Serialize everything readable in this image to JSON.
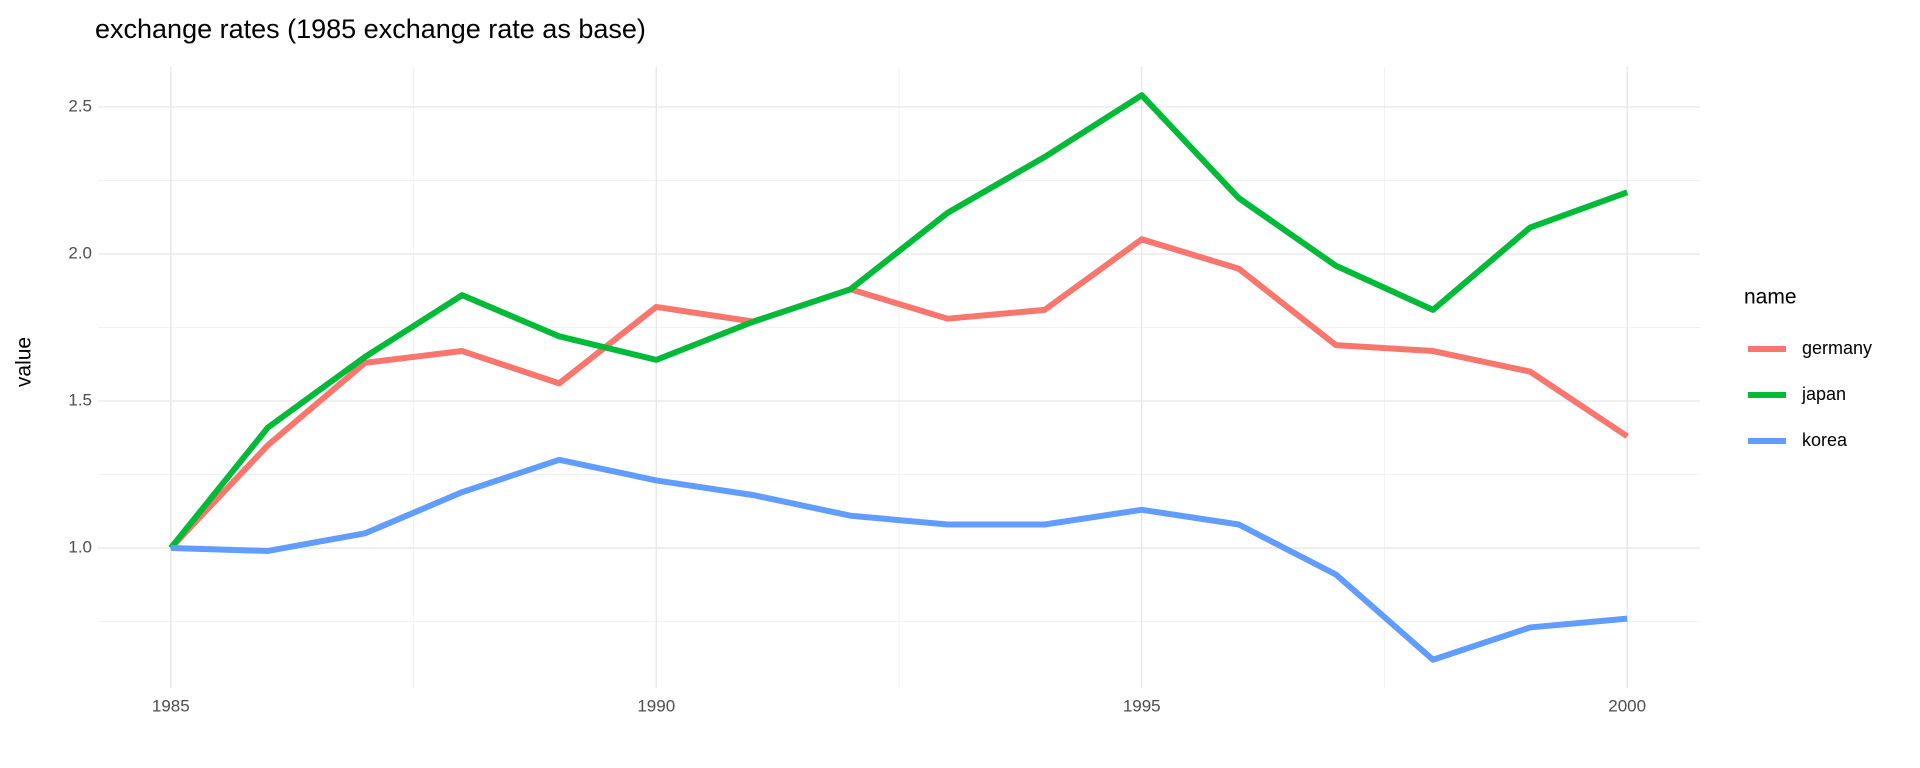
{
  "chart_data": {
    "type": "line",
    "title": "exchange rates (1985 exchange rate as base)",
    "y_label": "value",
    "legend_title": "name",
    "legend_position": "right",
    "grid": true,
    "x": [
      1985,
      1986,
      1987,
      1988,
      1989,
      1990,
      1991,
      1992,
      1993,
      1994,
      1995,
      1996,
      1997,
      1998,
      1999,
      2000
    ],
    "xlim": [
      1984.25,
      2000.75
    ],
    "xticks": [
      1985,
      1990,
      1995,
      2000
    ],
    "ylim": [
      0.524,
      2.636
    ],
    "yticks": [
      {
        "value": 1,
        "label": "1.0"
      },
      1.5,
      {
        "value": 2,
        "label": "2.0"
      },
      2.5
    ],
    "series": [
      {
        "name": "germany",
        "color": "#F8766D",
        "values": [
          1.0,
          1.35,
          1.63,
          1.67,
          1.56,
          1.82,
          1.77,
          1.88,
          1.78,
          1.81,
          2.05,
          1.95,
          1.69,
          1.67,
          1.6,
          1.38
        ]
      },
      {
        "name": "japan",
        "color": "#00BA38",
        "values": [
          1.0,
          1.41,
          1.65,
          1.86,
          1.72,
          1.64,
          1.77,
          1.88,
          2.14,
          2.33,
          2.54,
          2.19,
          1.96,
          1.81,
          2.09,
          2.21
        ]
      },
      {
        "name": "korea",
        "color": "#619CFF",
        "values": [
          1.0,
          0.99,
          1.05,
          1.19,
          1.3,
          1.23,
          1.18,
          1.11,
          1.08,
          1.08,
          1.13,
          1.08,
          0.91,
          0.62,
          0.73,
          0.76
        ]
      }
    ]
  }
}
